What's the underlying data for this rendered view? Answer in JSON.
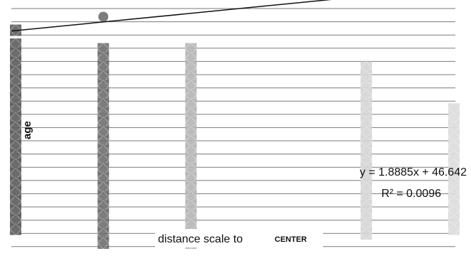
{
  "chart_data": {
    "type": "scatter",
    "xlabel": "distance scale to",
    "xlabel_suffix": "CENTER",
    "ylabel": "age",
    "series": [
      {
        "x": 1,
        "values": [
          48,
          45,
          43,
          41,
          39,
          37,
          35,
          33,
          31,
          29,
          27,
          25,
          23,
          21,
          19,
          17,
          15,
          13,
          11,
          9,
          7,
          5
        ],
        "color": "#5f5f5f"
      },
      {
        "x": 2,
        "values": [
          44,
          42,
          40,
          38,
          36,
          34,
          32,
          30,
          28,
          26,
          24,
          22,
          20,
          18,
          16,
          14,
          12,
          10,
          8,
          6,
          4,
          2
        ],
        "color": "#727272"
      },
      {
        "x": 3,
        "values": [
          44,
          42,
          40,
          38,
          36,
          34,
          32,
          30,
          28,
          26,
          24,
          22,
          20,
          18,
          16,
          14,
          12,
          10,
          8,
          6,
          4,
          2
        ],
        "color": "#b6b6b6"
      },
      {
        "x": 5,
        "values": [
          40,
          38,
          36,
          34,
          32,
          30,
          28,
          26,
          24,
          22,
          20,
          18,
          16,
          14,
          12,
          10,
          8,
          6,
          4
        ],
        "color": "#d6d6d6"
      },
      {
        "x": 6,
        "values": [
          31,
          29,
          27,
          25,
          23,
          21,
          19,
          17,
          15,
          13,
          11,
          9,
          7,
          5
        ],
        "color": "#dcdcdc"
      }
    ],
    "trendline": {
      "slope": 1.8885,
      "intercept": 46.642,
      "equation": "y = 1.8885x + 46.642",
      "r2": "R² = 0.0096"
    },
    "ylim": [
      0,
      55
    ],
    "xlim": [
      1,
      6
    ],
    "grid": true
  }
}
